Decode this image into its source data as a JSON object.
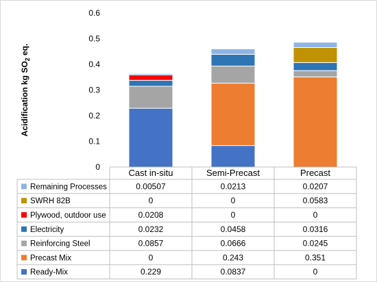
{
  "chart_data": {
    "type": "bar",
    "stacked": true,
    "categories": [
      "Cast in-situ",
      "Semi-Precast",
      "Precast"
    ],
    "ylabel": {
      "main": "Acidification  kg  SO",
      "sub": "2",
      "tail": " eq."
    },
    "ylim": [
      0,
      0.6
    ],
    "yticks": [
      "0",
      "0.1",
      "0.2",
      "0.3",
      "0.4",
      "0.5",
      "0.6"
    ],
    "grid": false,
    "legend_placement": "data table",
    "series": [
      {
        "name": "Ready-Mix",
        "color": "#4472c4",
        "values": [
          0.229,
          0.0837,
          0
        ],
        "labels": [
          "0.229",
          "0.0837",
          "0"
        ]
      },
      {
        "name": "Precast Mix",
        "color": "#ed7d31",
        "values": [
          0,
          0.243,
          0.351
        ],
        "labels": [
          "0",
          "0.243",
          "0.351"
        ]
      },
      {
        "name": "Reinforcing Steel",
        "color": "#a5a5a5",
        "values": [
          0.0857,
          0.0666,
          0.0245
        ],
        "labels": [
          "0.0857",
          "0.0666",
          "0.0245"
        ]
      },
      {
        "name": "Electricity",
        "color": "#2e75b6",
        "values": [
          0.0232,
          0.0458,
          0.0316
        ],
        "labels": [
          "0.0232",
          "0.0458",
          "0.0316"
        ]
      },
      {
        "name": "Plywood, outdoor use",
        "color": "#ff0000",
        "values": [
          0.0208,
          0,
          0
        ],
        "labels": [
          "0.0208",
          "0",
          "0"
        ]
      },
      {
        "name": "SWRH 82B",
        "color": "#c09200",
        "values": [
          0,
          0,
          0.0583
        ],
        "labels": [
          "0",
          "0",
          "0.0583"
        ]
      },
      {
        "name": "Remaining Processes",
        "color": "#8eb4e3",
        "values": [
          0.00507,
          0.0213,
          0.0207
        ],
        "labels": [
          "0.00507",
          "0.0213",
          "0.0207"
        ]
      }
    ]
  }
}
